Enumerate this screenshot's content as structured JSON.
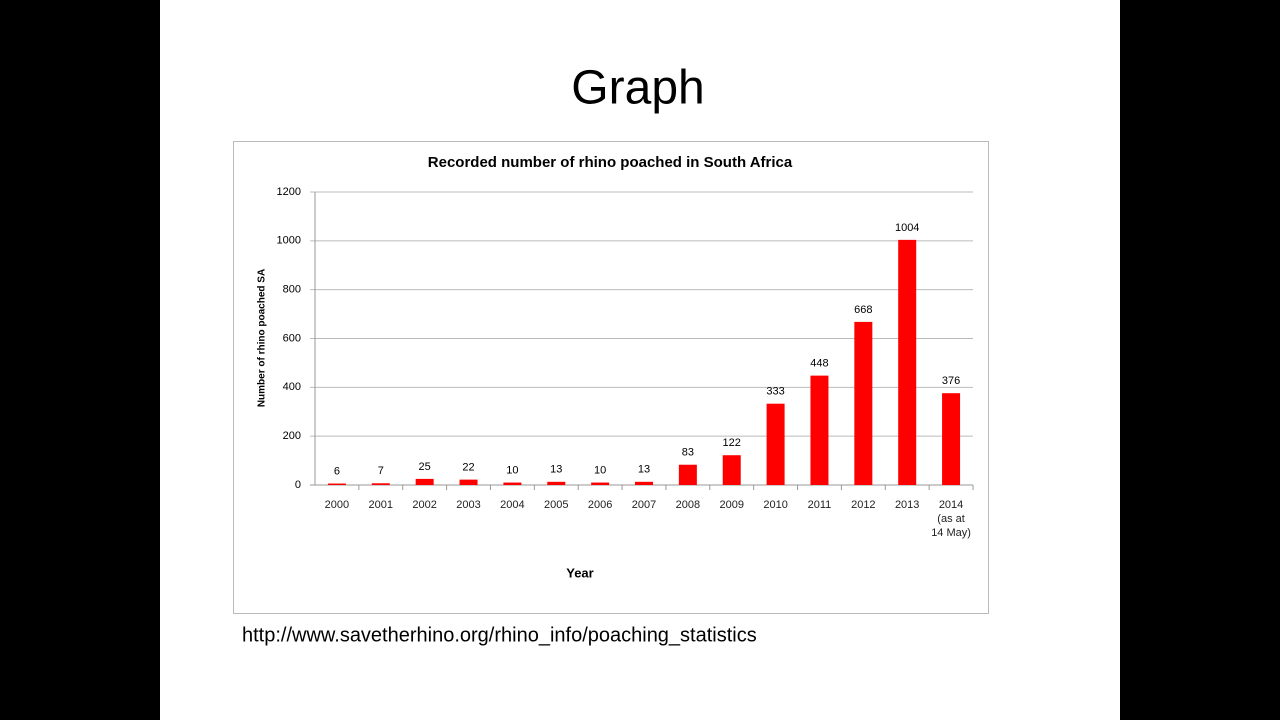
{
  "slide": {
    "title": "Graph",
    "source": "http://www.savetherhino.org/rhino_info/poaching_statistics"
  },
  "chart_data": {
    "type": "bar",
    "title": "Recorded number of rhino poached in South Africa",
    "x_label": "Year",
    "y_label": "Number of rhino poached SA",
    "categories": [
      "2000",
      "2001",
      "2002",
      "2003",
      "2004",
      "2005",
      "2006",
      "2007",
      "2008",
      "2009",
      "2010",
      "2011",
      "2012",
      "2013",
      "2014 (as at 14 May)"
    ],
    "values": [
      6,
      7,
      25,
      22,
      10,
      13,
      10,
      13,
      83,
      122,
      333,
      448,
      668,
      1004,
      376
    ],
    "color": "#ff0000",
    "ylim": [
      0,
      1200
    ],
    "yticks": [
      0,
      200,
      400,
      600,
      800,
      1000,
      1200
    ],
    "grid": true
  }
}
